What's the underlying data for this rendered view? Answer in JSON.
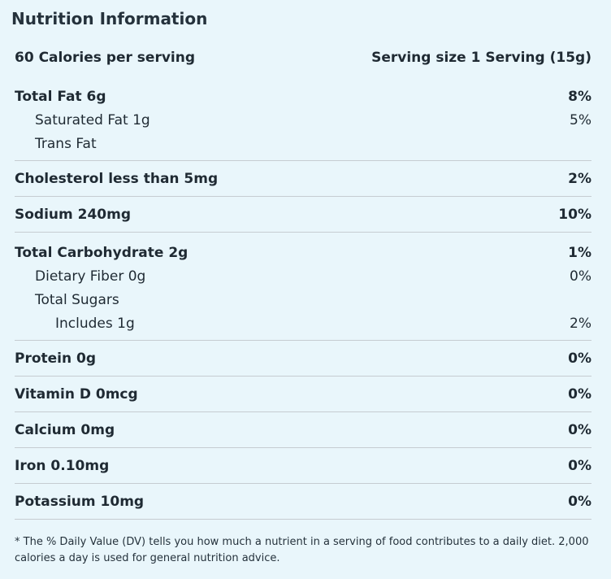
{
  "title": "Nutrition Information",
  "summary": {
    "calories": "60 Calories per serving",
    "serving_size": "Serving size 1 Serving (15g)"
  },
  "nutrients": {
    "total_fat": {
      "label": "Total Fat 6g",
      "pct": "8%"
    },
    "saturated_fat": {
      "label": "Saturated Fat 1g",
      "pct": "5%"
    },
    "trans_fat": {
      "label": "Trans Fat",
      "pct": ""
    },
    "cholesterol": {
      "label": "Cholesterol less than 5mg",
      "pct": "2%"
    },
    "sodium": {
      "label": "Sodium 240mg",
      "pct": "10%"
    },
    "total_carbohydrate": {
      "label": "Total Carbohydrate 2g",
      "pct": "1%"
    },
    "dietary_fiber": {
      "label": "Dietary Fiber 0g",
      "pct": "0%"
    },
    "total_sugars": {
      "label": "Total Sugars",
      "pct": ""
    },
    "includes": {
      "label": "Includes 1g",
      "pct": "2%"
    },
    "protein": {
      "label": "Protein 0g",
      "pct": "0%"
    },
    "vitamin_d": {
      "label": "Vitamin D 0mcg",
      "pct": "0%"
    },
    "calcium": {
      "label": "Calcium 0mg",
      "pct": "0%"
    },
    "iron": {
      "label": "Iron 0.10mg",
      "pct": "0%"
    },
    "potassium": {
      "label": "Potassium 10mg",
      "pct": "0%"
    }
  },
  "footnote": "* The % Daily Value (DV) tells you how much a nutrient in a serving of food contributes to a daily diet. 2,000 calories a day is used for general nutrition advice.",
  "colors": {
    "background": "#e9f6fb",
    "text": "#1f2a33",
    "divider": "#c6ccd1"
  }
}
